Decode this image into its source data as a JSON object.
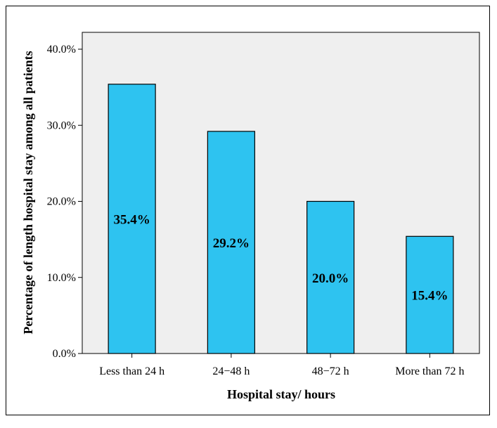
{
  "chart_data": {
    "type": "bar",
    "categories": [
      "Less than 24 h",
      "24−48 h",
      "48−72 h",
      "More than 72 h"
    ],
    "values": [
      35.4,
      29.2,
      20.0,
      15.4
    ],
    "value_labels": [
      "35.4%",
      "29.2%",
      "20.0%",
      "15.4%"
    ],
    "xlabel": "Hospital stay/ hours",
    "ylabel": "Percentage of length hospital stay among all patients",
    "ylim": [
      0,
      40
    ],
    "yticks": [
      0,
      10,
      20,
      30,
      40
    ],
    "ytick_labels": [
      "0.0%",
      "10.0%",
      "20.0%",
      "30.0%",
      "40.0%"
    ],
    "grid": false,
    "colors": {
      "bar_fill": "#2EC3F0",
      "plot_background": "#EFEFEF",
      "bar_stroke": "#000000"
    }
  }
}
